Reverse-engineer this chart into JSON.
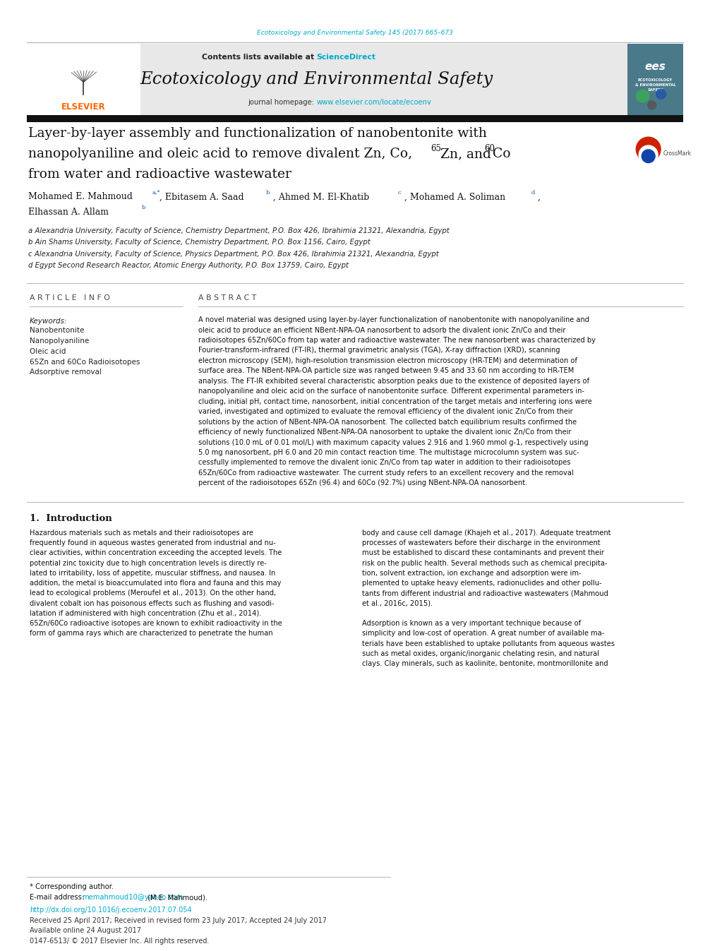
{
  "page_width": 9.92,
  "page_height": 13.23,
  "background_color": "#ffffff",
  "top_journal_ref": "Ecotoxicology and Environmental Safety 145 (2017) 665–673",
  "top_journal_ref_color": "#00aacc",
  "header_bg": "#e8e8e8",
  "header_contents_text": "Contents lists available at ",
  "header_sciencedirect": "ScienceDirect",
  "header_sciencedirect_color": "#00aacc",
  "journal_name": "Ecotoxicology and Environmental Safety",
  "journal_homepage_prefix": "journal homepage: ",
  "journal_homepage_url": "www.elsevier.com/locate/ecoenv",
  "journal_homepage_url_color": "#00aacc",
  "black_bar_color": "#1a1a1a",
  "article_title_line1": "Layer-by-layer assembly and functionalization of nanobentonite with",
  "article_title_line2": "nanopolyaniline and oleic acid to remove divalent Zn, Co,",
  "article_title_sup1": "65",
  "article_title_line2b": "Zn, and ",
  "article_title_sup2": "60",
  "article_title_line2c": "Co",
  "article_title_line3": "from water and radioactive wastewater",
  "article_info_header": "A R T I C L E   I N F O",
  "abstract_header": "A B S T R A C T",
  "keywords_label": "Keywords:",
  "keywords": [
    "Nanobentonite",
    "Nanopolyaniline",
    "Oleic acid",
    "65Zn and 60Co Radioisotopes",
    "Adsorptive removal"
  ],
  "affil_a": "a Alexandria University, Faculty of Science, Chemistry Department, P.O. Box 426, Ibrahimia 21321, Alexandria, Egypt",
  "affil_b": "b Ain Shams University, Faculty of Science, Chemistry Department, P.O. Box 1156, Cairo, Egypt",
  "affil_c": "c Alexandria University, Faculty of Science, Physics Department, P.O. Box 426, Ibrahimia 21321, Alexandria, Egypt",
  "affil_d": "d Egypt Second Research Reactor, Atomic Energy Authority, P.O. Box 13759, Cairo, Egypt",
  "abstract_lines": [
    "A novel material was designed using layer-by-layer functionalization of nanobentonite with nanopolyaniline and",
    "oleic acid to produce an efficient NBent-NPA-OA nanosorbent to adsorb the divalent ionic Zn/Co and their",
    "radioisotopes 65Zn/60Co from tap water and radioactive wastewater. The new nanosorbent was characterized by",
    "Fourier-transform-infrared (FT-IR), thermal gravimetric analysis (TGA), X-ray diffraction (XRD), scanning",
    "electron microscopy (SEM), high-resolution transmission electron microscopy (HR-TEM) and determination of",
    "surface area. The NBent-NPA-OA particle size was ranged between 9.45 and 33.60 nm according to HR-TEM",
    "analysis. The FT-IR exhibited several characteristic absorption peaks due to the existence of deposited layers of",
    "nanopolyaniline and oleic acid on the surface of nanobentonite surface. Different experimental parameters in-",
    "cluding, initial pH, contact time, nanosorbent, initial concentration of the target metals and interfering ions were",
    "varied, investigated and optimized to evaluate the removal efficiency of the divalent ionic Zn/Co from their",
    "solutions by the action of NBent-NPA-OA nanosorbent. The collected batch equilibrium results confirmed the",
    "efficiency of newly functionalized NBent-NPA-OA nanosorbent to uptake the divalent ionic Zn/Co from their",
    "solutions (10.0 mL of 0.01 mol/L) with maximum capacity values 2.916 and 1.960 mmol g-1, respectively using",
    "5.0 mg nanosorbent, pH 6.0 and 20 min contact reaction time. The multistage microcolumn system was suc-",
    "cessfully implemented to remove the divalent ionic Zn/Co from tap water in addition to their radioisotopes",
    "65Zn/60Co from radioactive wastewater. The current study refers to an excellent recovery and the removal",
    "percent of the radioisotopes 65Zn (96.4) and 60Co (92.7%) using NBent-NPA-OA nanosorbent."
  ],
  "intro_header": "1.  Introduction",
  "intro_col1_lines": [
    "Hazardous materials such as metals and their radioisotopes are",
    "frequently found in aqueous wastes generated from industrial and nu-",
    "clear activities, within concentration exceeding the accepted levels. The",
    "potential zinc toxicity due to high concentration levels is directly re-",
    "lated to irritability, loss of appetite, muscular stiffness, and nausea. In",
    "addition, the metal is bioaccumulated into flora and fauna and this may",
    "lead to ecological problems (Meroufel et al., 2013). On the other hand,",
    "divalent cobalt ion has poisonous effects such as flushing and vasodi-",
    "latation if administered with high concentration (Zhu et al., 2014).",
    "65Zn/60Co radioactive isotopes are known to exhibit radioactivity in the",
    "form of gamma rays which are characterized to penetrate the human"
  ],
  "intro_col2_lines": [
    "body and cause cell damage (Khajeh et al., 2017). Adequate treatment",
    "processes of wastewaters before their discharge in the environment",
    "must be established to discard these contaminants and prevent their",
    "risk on the public health. Several methods such as chemical precipita-",
    "tion, solvent extraction, ion exchange and adsorption were im-",
    "plemented to uptake heavy elements, radionuclides and other pollu-",
    "tants from different industrial and radioactive wastewaters (Mahmoud",
    "et al., 2016c, 2015).",
    "",
    "Adsorption is known as a very important technique because of",
    "simplicity and low-cost of operation. A great number of available ma-",
    "terials have been established to uptake pollutants from aqueous wastes",
    "such as metal oxides, organic/inorganic chelating resin, and natural",
    "clays. Clay minerals, such as kaolinite, bentonite, montmorillonite and"
  ],
  "footer_star": "* Corresponding author.",
  "footer_email_prefix": "E-mail address: ",
  "footer_email": "memahmoud10@yahoo.com",
  "footer_email_color": "#00aacc",
  "footer_email_suffix": " (M.E. Mahmoud).",
  "footer_doi": "http://dx.doi.org/10.1016/j.ecoenv.2017.07.054",
  "footer_doi_color": "#00aacc",
  "footer_received": "Received 25 April 2017; Received in revised form 23 July 2017; Accepted 24 July 2017",
  "footer_available": "Available online 24 August 2017",
  "footer_issn": "0147-6513/ © 2017 Elsevier Inc. All rights reserved."
}
